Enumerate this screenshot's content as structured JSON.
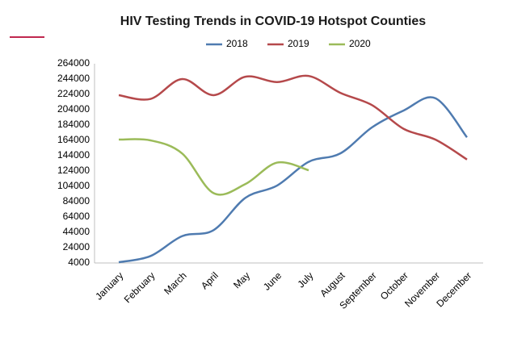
{
  "chart_data": {
    "type": "line",
    "title": "HIV Testing Trends in COVID-19 Hotspot Counties",
    "categories": [
      "January",
      "February",
      "March",
      "April",
      "May",
      "June",
      "July",
      "August",
      "September",
      "October",
      "November",
      "December"
    ],
    "series": [
      {
        "name": "2018",
        "color": "#4f7bb0",
        "values": [
          5000,
          13000,
          39000,
          47000,
          89000,
          105000,
          136000,
          147000,
          181000,
          203000,
          219000,
          168000
        ]
      },
      {
        "name": "2019",
        "color": "#b5494b",
        "values": [
          223000,
          218000,
          244000,
          223000,
          247000,
          240000,
          248000,
          226000,
          210000,
          179000,
          165000,
          139000
        ]
      },
      {
        "name": "2020",
        "color": "#9bbb59",
        "values": [
          165000,
          164000,
          147000,
          95000,
          107000,
          135000,
          125000,
          null,
          null,
          null,
          null,
          null
        ]
      }
    ],
    "ylim": [
      4000,
      264000
    ],
    "yticks": [
      4000,
      24000,
      44000,
      64000,
      84000,
      104000,
      124000,
      144000,
      164000,
      184000,
      204000,
      224000,
      244000,
      264000
    ],
    "legend": "top"
  }
}
